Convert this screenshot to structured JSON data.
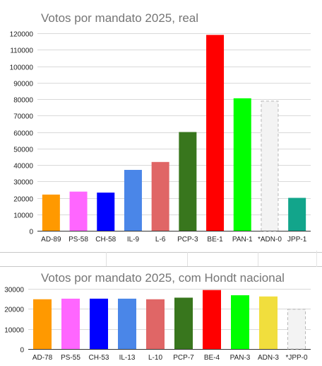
{
  "chart_data": [
    {
      "type": "bar",
      "title": "Votos por mandato 2025, real",
      "xlabel": "",
      "ylabel": "",
      "ylim": [
        0,
        120000
      ],
      "yticks": [
        0,
        10000,
        20000,
        30000,
        40000,
        50000,
        60000,
        70000,
        80000,
        90000,
        100000,
        110000,
        120000
      ],
      "grid": true,
      "categories": [
        "AD-89",
        "PS-58",
        "CH-58",
        "IL-9",
        "L-6",
        "PCP-3",
        "BE-1",
        "PAN-1",
        "*ADN-0",
        "JPP-1"
      ],
      "values": [
        22000,
        23800,
        23200,
        37000,
        41800,
        60000,
        119000,
        80500,
        79000,
        20000
      ],
      "colors": [
        "#ff9900",
        "#ff66ff",
        "#0000ff",
        "#4a86e8",
        "#e06666",
        "#38761d",
        "#ff0000",
        "#00ff00",
        "#f3f3f3",
        "#12a58b"
      ],
      "dashed": [
        false,
        false,
        false,
        false,
        false,
        false,
        false,
        false,
        true,
        false
      ]
    },
    {
      "type": "bar",
      "title": "Votos por mandato 2025, com Hondt nacional",
      "xlabel": "",
      "ylabel": "",
      "ylim": [
        0,
        30000
      ],
      "yticks": [
        0,
        10000,
        20000,
        30000
      ],
      "grid": true,
      "categories": [
        "AD-78",
        "PS-55",
        "CH-53",
        "IL-13",
        "L-10",
        "PCP-7",
        "BE-4",
        "PAN-3",
        "ADN-3",
        "*JPP-0"
      ],
      "values": [
        24800,
        25100,
        25100,
        25100,
        24800,
        25600,
        29400,
        26800,
        26200,
        20000
      ],
      "colors": [
        "#ff9900",
        "#ff66ff",
        "#0000ff",
        "#4a86e8",
        "#e06666",
        "#38761d",
        "#ff0000",
        "#00ff00",
        "#f1de3d",
        "#f3f3f3"
      ],
      "dashed": [
        false,
        false,
        false,
        false,
        false,
        false,
        false,
        false,
        false,
        true
      ]
    }
  ]
}
